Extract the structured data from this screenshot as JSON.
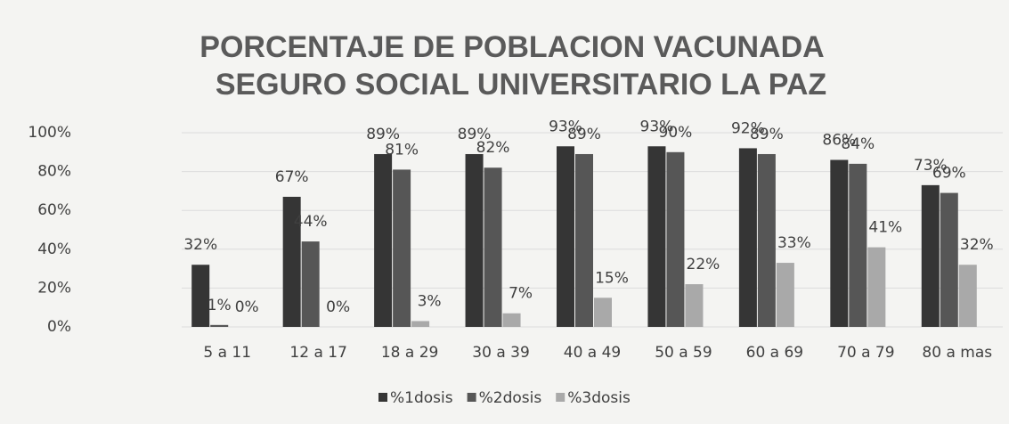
{
  "chart_data": {
    "type": "bar",
    "title": "PORCENTAJE DE POBLACION VACUNADA",
    "subtitle": "SEGURO SOCIAL UNIVERSITARIO LA PAZ",
    "categories": [
      "5 a 11",
      "12 a 17",
      "18 a 29",
      "30 a 39",
      "40 a 49",
      "50 a 59",
      "60 a 69",
      "70 a 79",
      "80 a mas"
    ],
    "series": [
      {
        "name": "%1dosis",
        "color": "#353535",
        "values": [
          32,
          67,
          89,
          89,
          93,
          93,
          92,
          86,
          73
        ],
        "value_labels": [
          "32%",
          "67%",
          "89%",
          "89%",
          "93%",
          "93%",
          "92%",
          "86%",
          "73%"
        ]
      },
      {
        "name": "%2dosis",
        "color": "#565656",
        "values": [
          1,
          44,
          81,
          82,
          89,
          90,
          89,
          84,
          69
        ],
        "value_labels": [
          "1%",
          "44%",
          "81%",
          "82%",
          "89%",
          "90%",
          "89%",
          "84%",
          "69%"
        ]
      },
      {
        "name": "%3dosis",
        "color": "#a9a9a9",
        "values": [
          0,
          0,
          3,
          7,
          15,
          22,
          33,
          41,
          32
        ],
        "value_labels": [
          "0%",
          "0%",
          "3%",
          "7%",
          "15%",
          "22%",
          "33%",
          "41%",
          "32%"
        ]
      }
    ],
    "ylim": [
      0,
      100
    ],
    "yticks": [
      {
        "value": 0,
        "label": "0%"
      },
      {
        "value": 20,
        "label": "20%"
      },
      {
        "value": 40,
        "label": "40%"
      },
      {
        "value": 60,
        "label": "60%"
      },
      {
        "value": 80,
        "label": "80%"
      },
      {
        "value": 100,
        "label": "100%"
      }
    ],
    "grid": true,
    "legend": "bottom"
  }
}
